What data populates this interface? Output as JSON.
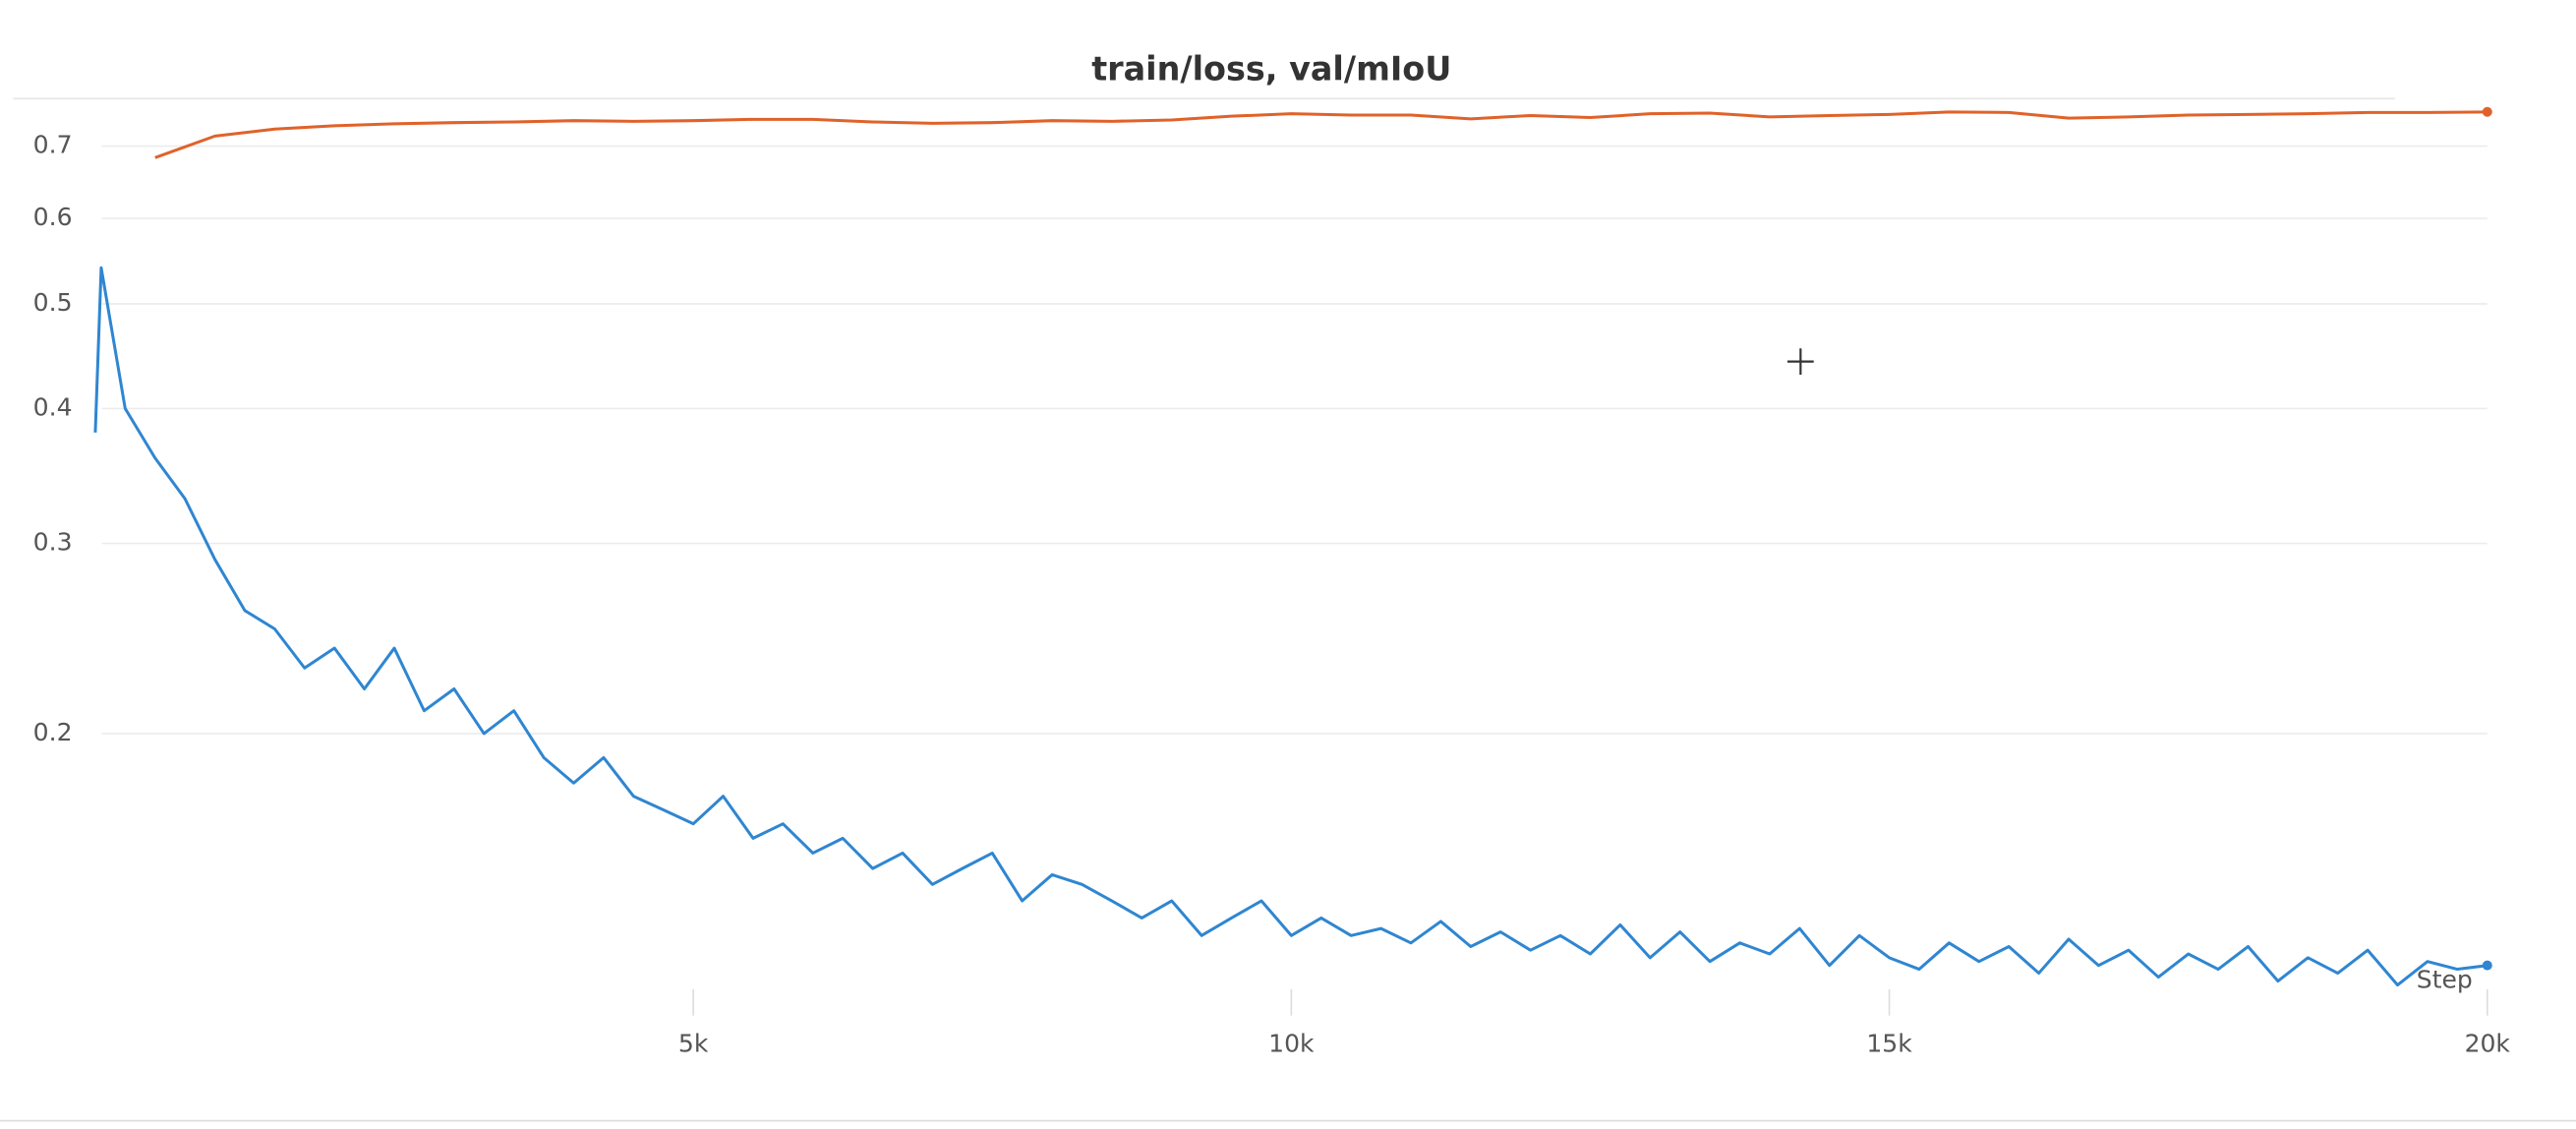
{
  "chart_data": {
    "type": "line",
    "title": "train/loss, val/mIoU",
    "xlabel": "Step",
    "log_y": true,
    "grid": true,
    "xlim": [
      0,
      20000
    ],
    "xticks": [
      {
        "value": 5000,
        "label": "5k"
      },
      {
        "value": 10000,
        "label": "10k"
      },
      {
        "value": 15000,
        "label": "15k"
      },
      {
        "value": 20000,
        "label": "20k"
      }
    ],
    "ylim": [
      0.11,
      0.78
    ],
    "yticks": [
      0.2,
      0.3,
      0.4,
      0.5,
      0.6,
      0.7
    ],
    "series": [
      {
        "color": "#2f86d1",
        "x": [
          0,
          50,
          250,
          500,
          750,
          1000,
          1250,
          1500,
          1750,
          2000,
          2250,
          2500,
          2750,
          3000,
          3250,
          3500,
          3750,
          4000,
          4250,
          4500,
          4750,
          5000,
          5250,
          5500,
          5750,
          6000,
          6250,
          6500,
          6750,
          7000,
          7250,
          7500,
          7750,
          8000,
          8250,
          8500,
          8750,
          9000,
          9250,
          9500,
          9750,
          10000,
          10250,
          10500,
          10750,
          11000,
          11250,
          11500,
          11750,
          12000,
          12250,
          12500,
          12750,
          13000,
          13250,
          13500,
          13750,
          14000,
          14250,
          14500,
          14750,
          15000,
          15250,
          15500,
          15750,
          16000,
          16250,
          16500,
          16750,
          17000,
          17250,
          17500,
          17750,
          18000,
          18250,
          18500,
          18750,
          19000,
          19250,
          19500,
          19750,
          20000
        ],
        "values": [
          0.38,
          0.54,
          0.4,
          0.36,
          0.33,
          0.29,
          0.26,
          0.25,
          0.23,
          0.24,
          0.22,
          0.24,
          0.21,
          0.22,
          0.2,
          0.21,
          0.19,
          0.18,
          0.19,
          0.175,
          0.17,
          0.165,
          0.175,
          0.16,
          0.165,
          0.155,
          0.16,
          0.15,
          0.155,
          0.145,
          0.15,
          0.155,
          0.14,
          0.148,
          0.145,
          0.14,
          0.135,
          0.14,
          0.13,
          0.135,
          0.14,
          0.13,
          0.135,
          0.13,
          0.132,
          0.128,
          0.134,
          0.127,
          0.131,
          0.126,
          0.13,
          0.125,
          0.133,
          0.124,
          0.131,
          0.123,
          0.128,
          0.125,
          0.132,
          0.122,
          0.13,
          0.124,
          0.121,
          0.128,
          0.123,
          0.127,
          0.12,
          0.129,
          0.122,
          0.126,
          0.119,
          0.125,
          0.121,
          0.127,
          0.118,
          0.124,
          0.12,
          0.126,
          0.117,
          0.123,
          0.121,
          0.122
        ]
      },
      {
        "color": "#e0622a",
        "x": [
          500,
          1000,
          1500,
          2000,
          2500,
          3000,
          3500,
          4000,
          4500,
          5000,
          5500,
          6000,
          6500,
          7000,
          7500,
          8000,
          8500,
          9000,
          9500,
          10000,
          10500,
          11000,
          11500,
          12000,
          12500,
          13000,
          13500,
          14000,
          14500,
          15000,
          15500,
          16000,
          16500,
          17000,
          17500,
          18000,
          18500,
          19000,
          19500,
          20000
        ],
        "values": [
          0.683,
          0.715,
          0.726,
          0.731,
          0.734,
          0.736,
          0.737,
          0.739,
          0.738,
          0.739,
          0.741,
          0.741,
          0.737,
          0.735,
          0.736,
          0.739,
          0.738,
          0.74,
          0.746,
          0.75,
          0.748,
          0.748,
          0.742,
          0.747,
          0.744,
          0.75,
          0.751,
          0.745,
          0.747,
          0.749,
          0.753,
          0.752,
          0.743,
          0.745,
          0.748,
          0.749,
          0.75,
          0.752,
          0.752,
          0.753
        ]
      }
    ]
  }
}
